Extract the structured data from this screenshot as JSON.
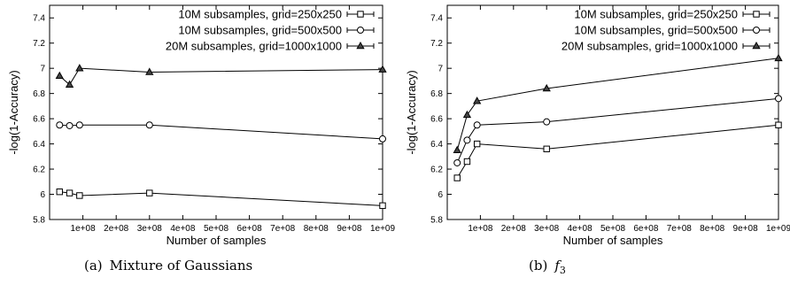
{
  "figure": {
    "panels": [
      {
        "caption_label": "(a)",
        "caption_text": "Mixture of Gaussians",
        "caption_math": "",
        "caption_math_sub": ""
      },
      {
        "caption_label": "(b)",
        "caption_text": "",
        "caption_math": "f",
        "caption_math_sub": "3"
      }
    ]
  },
  "chart_data": [
    {
      "type": "line",
      "title": "",
      "xlabel": "Number of samples",
      "ylabel": "-log(1-Accuracy)",
      "xlim": [
        0,
        1000000000
      ],
      "ylim": [
        5.8,
        7.5
      ],
      "x_ticks": [
        {
          "value": 100000000,
          "label": "1e+08"
        },
        {
          "value": 200000000,
          "label": "2e+08"
        },
        {
          "value": 300000000,
          "label": "3e+08"
        },
        {
          "value": 400000000,
          "label": "4e+08"
        },
        {
          "value": 500000000,
          "label": "5e+08"
        },
        {
          "value": 600000000,
          "label": "6e+08"
        },
        {
          "value": 700000000,
          "label": "7e+08"
        },
        {
          "value": 800000000,
          "label": "8e+08"
        },
        {
          "value": 900000000,
          "label": "9e+08"
        },
        {
          "value": 1000000000,
          "label": "1e+09"
        }
      ],
      "y_ticks": [
        {
          "value": 5.8,
          "label": "5.8"
        },
        {
          "value": 6.0,
          "label": "6"
        },
        {
          "value": 6.2,
          "label": "6.2"
        },
        {
          "value": 6.4,
          "label": "6.4"
        },
        {
          "value": 6.6,
          "label": "6.6"
        },
        {
          "value": 6.8,
          "label": "6.8"
        },
        {
          "value": 7.0,
          "label": "7"
        },
        {
          "value": 7.2,
          "label": "7.2"
        },
        {
          "value": 7.4,
          "label": "7.4"
        }
      ],
      "grid": false,
      "legend_position": "top-right",
      "series": [
        {
          "name": "10M subsamples, grid=250x250",
          "marker": "square",
          "x": [
            30000000,
            60000000,
            90000000,
            300000000,
            1000000000
          ],
          "y": [
            6.02,
            6.01,
            5.99,
            6.01,
            5.91
          ]
        },
        {
          "name": "10M subsamples, grid=500x500",
          "marker": "circle",
          "x": [
            30000000,
            60000000,
            90000000,
            300000000,
            1000000000
          ],
          "y": [
            6.55,
            6.545,
            6.55,
            6.55,
            6.44
          ]
        },
        {
          "name": "20M subsamples, grid=1000x1000",
          "marker": "triangle",
          "x": [
            30000000,
            60000000,
            90000000,
            300000000,
            1000000000
          ],
          "y": [
            6.94,
            6.87,
            7.0,
            6.97,
            6.99
          ]
        }
      ]
    },
    {
      "type": "line",
      "title": "",
      "xlabel": "Number of samples",
      "ylabel": "-log(1-Accuracy)",
      "xlim": [
        0,
        1000000000
      ],
      "ylim": [
        5.8,
        7.5
      ],
      "x_ticks": [
        {
          "value": 100000000,
          "label": "1e+08"
        },
        {
          "value": 200000000,
          "label": "2e+08"
        },
        {
          "value": 300000000,
          "label": "3e+08"
        },
        {
          "value": 400000000,
          "label": "4e+08"
        },
        {
          "value": 500000000,
          "label": "5e+08"
        },
        {
          "value": 600000000,
          "label": "6e+08"
        },
        {
          "value": 700000000,
          "label": "7e+08"
        },
        {
          "value": 800000000,
          "label": "8e+08"
        },
        {
          "value": 900000000,
          "label": "9e+08"
        },
        {
          "value": 1000000000,
          "label": "1e+09"
        }
      ],
      "y_ticks": [
        {
          "value": 5.8,
          "label": "5.8"
        },
        {
          "value": 6.0,
          "label": "6"
        },
        {
          "value": 6.2,
          "label": "6.2"
        },
        {
          "value": 6.4,
          "label": "6.4"
        },
        {
          "value": 6.6,
          "label": "6.6"
        },
        {
          "value": 6.8,
          "label": "6.8"
        },
        {
          "value": 7.0,
          "label": "7"
        },
        {
          "value": 7.2,
          "label": "7.2"
        },
        {
          "value": 7.4,
          "label": "7.4"
        }
      ],
      "grid": false,
      "legend_position": "top-right",
      "series": [
        {
          "name": "10M subsamples, grid=250x250",
          "marker": "square",
          "x": [
            30000000,
            60000000,
            90000000,
            300000000,
            1000000000
          ],
          "y": [
            6.13,
            6.26,
            6.4,
            6.36,
            6.55
          ]
        },
        {
          "name": "10M subsamples, grid=500x500",
          "marker": "circle",
          "x": [
            30000000,
            60000000,
            90000000,
            300000000,
            1000000000
          ],
          "y": [
            6.25,
            6.43,
            6.55,
            6.575,
            6.76
          ]
        },
        {
          "name": "20M subsamples, grid=1000x1000",
          "marker": "triangle",
          "x": [
            30000000,
            60000000,
            90000000,
            300000000,
            1000000000
          ],
          "y": [
            6.35,
            6.63,
            6.74,
            6.84,
            7.08
          ]
        }
      ]
    }
  ]
}
